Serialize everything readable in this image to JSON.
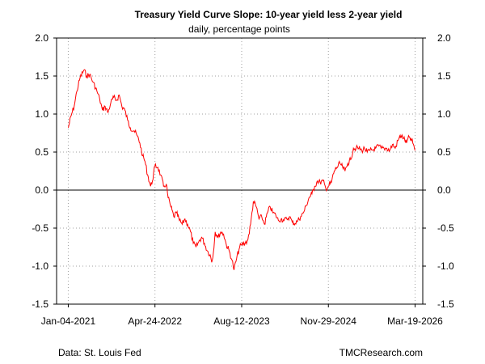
{
  "chart_data": {
    "type": "line",
    "title": "Treasury Yield Curve Slope: 10-year yield less 2-year yield",
    "subtitle": "daily, percentage points",
    "ylim": [
      -1.5,
      2.0
    ],
    "yticks": [
      "-1.5",
      "-1.0",
      "-0.5",
      "0.0",
      "0.5",
      "1.0",
      "1.5",
      "2.0"
    ],
    "xlim": [
      "2020-11-01",
      "2026-04-30"
    ],
    "xticks": [
      {
        "date": "2021-01-04",
        "label": "Jan-04-2021"
      },
      {
        "date": "2022-04-24",
        "label": "Apr-24-2022"
      },
      {
        "date": "2023-08-12",
        "label": "Aug-12-2023"
      },
      {
        "date": "2024-11-29",
        "label": "Nov-29-2024"
      },
      {
        "date": "2026-03-19",
        "label": "Mar-19-2026"
      }
    ],
    "grid": true,
    "reference_line": 0,
    "line_color": "#ff0000",
    "series": [
      {
        "x": [
          "2021-01-04",
          "2021-01-20",
          "2021-02-05",
          "2021-02-20",
          "2021-03-10",
          "2021-03-31",
          "2021-04-15",
          "2021-05-01",
          "2021-05-20",
          "2021-06-10",
          "2021-06-25",
          "2021-07-10",
          "2021-07-25",
          "2021-08-10",
          "2021-08-25",
          "2021-09-10",
          "2021-09-25",
          "2021-10-10",
          "2021-10-25",
          "2021-11-10",
          "2021-11-25",
          "2021-12-10",
          "2021-12-31",
          "2022-01-15",
          "2022-01-31",
          "2022-02-15",
          "2022-02-28",
          "2022-03-15",
          "2022-03-31",
          "2022-04-10",
          "2022-04-24",
          "2022-05-10",
          "2022-05-25",
          "2022-06-10",
          "2022-06-25",
          "2022-07-05",
          "2022-07-20",
          "2022-08-05",
          "2022-08-20",
          "2022-09-05",
          "2022-09-20",
          "2022-10-05",
          "2022-10-20",
          "2022-11-05",
          "2022-11-20",
          "2022-12-05",
          "2022-12-20",
          "2023-01-05",
          "2023-01-20",
          "2023-02-05",
          "2023-02-20",
          "2023-03-01",
          "2023-03-10",
          "2023-03-20",
          "2023-04-05",
          "2023-04-20",
          "2023-05-05",
          "2023-05-20",
          "2023-06-05",
          "2023-06-20",
          "2023-07-01",
          "2023-07-15",
          "2023-08-01",
          "2023-08-12",
          "2023-08-31",
          "2023-09-15",
          "2023-09-30",
          "2023-10-15",
          "2023-10-31",
          "2023-11-15",
          "2023-11-30",
          "2023-12-15",
          "2023-12-31",
          "2024-01-15",
          "2024-01-31",
          "2024-02-15",
          "2024-02-29",
          "2024-03-15",
          "2024-03-31",
          "2024-04-15",
          "2024-04-30",
          "2024-05-15",
          "2024-05-31",
          "2024-06-15",
          "2024-06-30",
          "2024-07-15",
          "2024-07-31",
          "2024-08-15",
          "2024-08-31",
          "2024-09-15",
          "2024-09-30",
          "2024-10-15",
          "2024-10-31",
          "2024-11-15",
          "2024-11-29",
          "2024-12-15",
          "2024-12-31",
          "2025-01-15",
          "2025-01-31",
          "2025-02-15",
          "2025-02-28",
          "2025-03-15",
          "2025-03-31",
          "2025-04-15",
          "2025-04-30",
          "2025-05-15",
          "2025-05-31",
          "2025-06-15",
          "2025-06-30",
          "2025-07-15",
          "2025-07-31",
          "2025-08-15",
          "2025-08-31",
          "2025-09-15",
          "2025-09-30",
          "2025-10-15",
          "2025-10-31",
          "2025-11-15",
          "2025-11-30",
          "2025-12-15",
          "2025-12-31",
          "2026-01-15",
          "2026-01-31",
          "2026-02-15",
          "2026-02-28",
          "2026-03-10",
          "2026-03-19"
        ],
        "y": [
          0.82,
          0.98,
          1.1,
          1.3,
          1.48,
          1.58,
          1.5,
          1.52,
          1.42,
          1.3,
          1.2,
          1.05,
          1.1,
          1.02,
          1.15,
          1.22,
          1.18,
          1.25,
          1.1,
          1.05,
          0.92,
          0.82,
          0.78,
          0.72,
          0.62,
          0.45,
          0.38,
          0.2,
          0.05,
          0.12,
          0.32,
          0.3,
          0.2,
          0.05,
          0.08,
          -0.1,
          -0.22,
          -0.35,
          -0.3,
          -0.4,
          -0.45,
          -0.38,
          -0.45,
          -0.55,
          -0.7,
          -0.75,
          -0.68,
          -0.62,
          -0.7,
          -0.8,
          -0.85,
          -0.95,
          -0.82,
          -0.55,
          -0.62,
          -0.55,
          -0.58,
          -0.72,
          -0.8,
          -0.92,
          -1.05,
          -0.9,
          -0.75,
          -0.72,
          -0.7,
          -0.65,
          -0.45,
          -0.15,
          -0.22,
          -0.38,
          -0.35,
          -0.45,
          -0.3,
          -0.22,
          -0.3,
          -0.33,
          -0.4,
          -0.38,
          -0.4,
          -0.38,
          -0.35,
          -0.42,
          -0.44,
          -0.4,
          -0.35,
          -0.3,
          -0.2,
          -0.1,
          -0.05,
          0.05,
          0.12,
          0.1,
          0.12,
          0.02,
          0.05,
          0.1,
          0.25,
          0.3,
          0.35,
          0.3,
          0.25,
          0.35,
          0.4,
          0.55,
          0.55,
          0.55,
          0.52,
          0.55,
          0.5,
          0.52,
          0.53,
          0.55,
          0.58,
          0.55,
          0.55,
          0.55,
          0.52,
          0.6,
          0.55,
          0.65,
          0.72,
          0.68,
          0.62,
          0.7,
          0.65,
          0.6,
          0.52
        ]
      }
    ]
  },
  "footer": {
    "source": "Data: St. Louis Fed",
    "credit": "TMCResearch.com"
  }
}
